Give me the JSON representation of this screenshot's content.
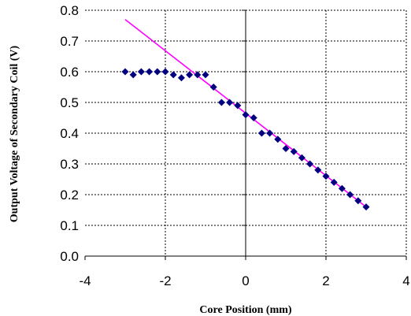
{
  "chart_data": {
    "type": "scatter",
    "title": "",
    "xlabel": "Core Position (mm)",
    "ylabel": "Output Voltage of Secondary Coil (V)",
    "xlim": [
      -4,
      4
    ],
    "ylim": [
      0,
      0.8
    ],
    "x_ticks": [
      -4,
      -2,
      0,
      2,
      4
    ],
    "x_tick_labels": [
      "-4",
      "-2",
      "0",
      "2",
      "4"
    ],
    "y_ticks": [
      0,
      0.1,
      0.2,
      0.3,
      0.4,
      0.5,
      0.6,
      0.7,
      0.8
    ],
    "y_tick_labels": [
      "0.0",
      "0.1",
      "0.2",
      "0.3",
      "0.4",
      "0.5",
      "0.6",
      "0.7",
      "0.8"
    ],
    "grid": {
      "horizontal": true,
      "vertical": true,
      "style": "dashed"
    },
    "legend": "none",
    "series": [
      {
        "type": "scatter",
        "marker": "diamond",
        "color": "#000080",
        "x": [
          -3.0,
          -2.8,
          -2.6,
          -2.4,
          -2.2,
          -2.0,
          -1.8,
          -1.6,
          -1.4,
          -1.2,
          -1.0,
          -0.8,
          -0.6,
          -0.4,
          -0.2,
          0.0,
          0.2,
          0.4,
          0.6,
          0.8,
          1.0,
          1.2,
          1.4,
          1.6,
          1.8,
          2.0,
          2.2,
          2.4,
          2.6,
          2.8,
          3.0
        ],
        "y": [
          0.6,
          0.59,
          0.6,
          0.6,
          0.6,
          0.6,
          0.59,
          0.58,
          0.59,
          0.59,
          0.59,
          0.55,
          0.5,
          0.5,
          0.49,
          0.46,
          0.45,
          0.4,
          0.4,
          0.38,
          0.35,
          0.34,
          0.32,
          0.3,
          0.28,
          0.26,
          0.24,
          0.22,
          0.2,
          0.18,
          0.16
        ]
      },
      {
        "type": "line",
        "color": "#ff00ff",
        "x": [
          -3.0,
          3.0
        ],
        "y": [
          0.77,
          0.16
        ]
      }
    ]
  }
}
